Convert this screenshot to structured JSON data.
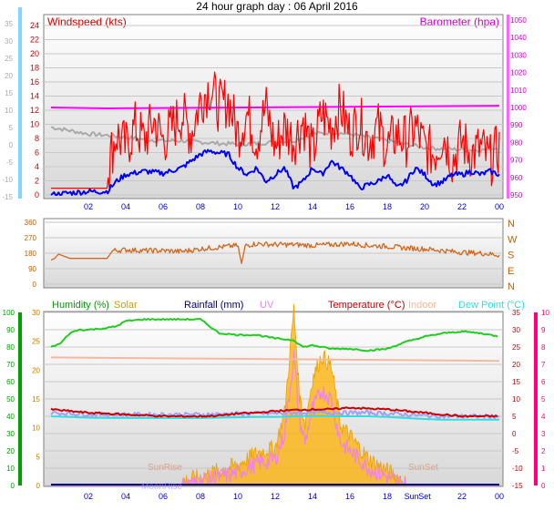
{
  "title": "24 hour graph day : 06 April 2016",
  "colors": {
    "wind_speed": "#ff0000",
    "wind_gust": "#ff0000",
    "wind_avg": "#0000ff",
    "barometer": "#ff00ff",
    "temp_gray": "#a9a9a9",
    "direction": "#d2691e",
    "humidity": "#22cc22",
    "solar": "#ffb000",
    "rainfall": "#000080",
    "uv": "#ee82ee",
    "temperature": "#c80000",
    "indoor": "#f4b8a0",
    "dew_point": "#33dddd",
    "apparent": "#a0a0ff",
    "left_axis_cyan": "#00b0ff",
    "left_axis_green": "#00a000",
    "left_axis_orange": "#c08000",
    "right_axis_pink": "#ff0080",
    "tick_blue": "#0000cc"
  },
  "chart_data": [
    {
      "type": "line",
      "panel": "wind",
      "title": "24 hour graph day : 06 April 2016",
      "left_label": "Windspeed (kts)",
      "right_label": "Barometer (hpa)",
      "left_ticks": [
        "24",
        "22",
        "20",
        "18",
        "16",
        "14",
        "12",
        "10",
        "8",
        "6",
        "4",
        "2",
        "0"
      ],
      "left_ticks_outer": [
        "35",
        "30",
        "25",
        "20",
        "15",
        "10",
        "5",
        "0",
        "-5",
        "-10",
        "-15"
      ],
      "right_ticks": [
        "1050",
        "1040",
        "1030",
        "1020",
        "1010",
        "1000",
        "990",
        "980",
        "970",
        "960",
        "950"
      ],
      "x_ticks": [
        "02",
        "04",
        "06",
        "08",
        "10",
        "12",
        "14",
        "16",
        "18",
        "20",
        "22",
        "00"
      ],
      "ylim": [
        0,
        25
      ],
      "series": [
        {
          "x": [
            0,
            1,
            2,
            3,
            3.2,
            3.5,
            4,
            4.5,
            5,
            5.5,
            6,
            6.5,
            7,
            7.5,
            8,
            8.5,
            9,
            9.5,
            10,
            10.5,
            11,
            11.5,
            12,
            12.5,
            13,
            13.5,
            14,
            14.5,
            15,
            15.5,
            16,
            16.5,
            17,
            17.5,
            18,
            18.5,
            19,
            19.5,
            20,
            20.5,
            21,
            21.5,
            22,
            22.5,
            23,
            23.5,
            24
          ],
          "values": [
            1,
            1,
            1,
            1,
            6,
            9,
            7,
            10,
            8,
            11,
            8,
            10,
            12,
            9,
            14,
            16,
            13,
            14,
            9,
            12,
            8,
            13,
            7,
            10,
            8,
            11,
            6,
            12,
            10,
            13,
            9,
            11,
            8,
            10,
            7,
            9,
            8,
            10,
            7,
            6,
            9,
            5,
            8,
            6,
            7,
            5,
            7
          ]
        },
        {
          "x": [
            0,
            1,
            2,
            3,
            3.5,
            4,
            5,
            6,
            7,
            8,
            8.5,
            9,
            9.5,
            10,
            10.5,
            11,
            11.5,
            12,
            12.5,
            13,
            13.5,
            14,
            14.5,
            15,
            15.5,
            16,
            16.5,
            17,
            17.5,
            18,
            18.5,
            19,
            19.5,
            20,
            20.5,
            21,
            21.5,
            22,
            22.5,
            23,
            23.5,
            24
          ],
          "values": [
            0,
            0.3,
            0.5,
            0.5,
            2,
            3,
            3.5,
            3.2,
            4,
            6,
            6.5,
            6.2,
            6,
            4,
            3,
            4,
            2,
            3,
            4,
            1,
            2,
            4,
            3,
            5,
            4,
            3,
            1,
            1.5,
            2,
            3,
            1,
            2,
            4,
            3,
            1.5,
            2,
            3,
            3,
            3.5,
            3,
            3.5,
            3
          ]
        },
        {
          "x": [
            0,
            24
          ],
          "values": [
            1000,
            1001
          ]
        },
        {
          "x": [
            0,
            1,
            2,
            3,
            4,
            5,
            6,
            7,
            8,
            9,
            10,
            11,
            12,
            13,
            14,
            15,
            16,
            17,
            18,
            19,
            20,
            21,
            22,
            23,
            24
          ],
          "values": [
            10,
            9.5,
            9,
            8.8,
            8.5,
            8.2,
            8,
            8,
            7.8,
            7.6,
            7.5,
            7.6,
            7.8,
            8,
            9,
            9.2,
            9,
            8.5,
            8,
            7.5,
            7,
            6.8,
            6.7,
            6.6,
            7
          ]
        }
      ]
    },
    {
      "type": "line",
      "panel": "direction",
      "left_ticks": [
        "360",
        "270",
        "180",
        "90",
        "0"
      ],
      "right_ticks": [
        "N",
        "W",
        "S",
        "E",
        "N"
      ],
      "ylim": [
        0,
        360
      ],
      "series": [
        {
          "x": [
            0,
            0.2,
            0.4,
            1,
            2,
            3,
            3.3,
            4,
            5,
            6,
            7,
            8,
            9,
            10,
            10.2,
            10.4,
            11,
            12,
            13,
            14,
            15,
            16,
            17,
            18,
            19,
            20,
            21,
            22,
            23,
            24
          ],
          "values": [
            140,
            150,
            175,
            150,
            150,
            150,
            195,
            200,
            195,
            195,
            190,
            205,
            215,
            225,
            120,
            225,
            235,
            230,
            230,
            225,
            230,
            235,
            225,
            220,
            210,
            205,
            195,
            185,
            180,
            170
          ]
        }
      ]
    },
    {
      "type": "line",
      "panel": "lower",
      "labels": [
        "Humidity (%)",
        "Solar",
        "Rainfall (mm)",
        "UV",
        "Temperature (°C)",
        "Indoor",
        "Dew Point (°C)"
      ],
      "annotations": [
        "SunRise",
        "MoonRise",
        "SunSet",
        "SunSet"
      ],
      "left_ticks_inner": [
        "30",
        "25",
        "20",
        "15",
        "10",
        "5",
        "0"
      ],
      "left_ticks_outer": [
        "100",
        "90",
        "80",
        "70",
        "60",
        "50",
        "40",
        "30",
        "20",
        "10",
        "0"
      ],
      "right_ticks_inner": [
        "35",
        "30",
        "25",
        "20",
        "15",
        "10",
        "5",
        "0",
        "-5",
        "-10",
        "-15"
      ],
      "right_ticks_outer": [
        "10",
        "9",
        "8",
        "7",
        "6",
        "5",
        "4",
        "3",
        "2",
        "1",
        "0"
      ],
      "x_ticks": [
        "02",
        "04",
        "06",
        "08",
        "10",
        "12",
        "14",
        "16",
        "18",
        "Sun",
        "Set",
        "22",
        "00"
      ],
      "series": [
        {
          "name": "Humidity (%)",
          "x": [
            0,
            0.5,
            1,
            1.5,
            2,
            3,
            3.5,
            4,
            5,
            6,
            7,
            8,
            9,
            10,
            11,
            12,
            13,
            13.5,
            14,
            15,
            16,
            17,
            18,
            19,
            20,
            21,
            22,
            23,
            24
          ],
          "values": [
            80,
            82,
            88,
            90,
            90,
            91,
            92,
            95,
            96,
            96,
            96,
            96,
            88,
            87,
            87,
            85,
            84,
            80,
            81,
            79,
            79,
            78,
            79,
            83,
            86,
            88,
            89,
            88,
            86
          ]
        },
        {
          "name": "Temperature (°C)",
          "x": [
            0,
            1,
            2,
            3,
            4,
            5,
            6,
            7,
            8,
            9,
            10,
            11,
            12,
            13,
            14,
            15,
            16,
            17,
            18,
            19,
            20,
            21,
            22,
            23,
            24
          ],
          "values": [
            7,
            6.5,
            6,
            5.8,
            5.5,
            5.3,
            5,
            5,
            5,
            5.2,
            5.8,
            6,
            6.5,
            6.8,
            7,
            7,
            7.5,
            7.2,
            7,
            6.5,
            6,
            5.5,
            5,
            5,
            5
          ]
        },
        {
          "name": "Indoor",
          "x": [
            0,
            24
          ],
          "values": [
            22,
            21
          ]
        },
        {
          "name": "Dew Point (°C)",
          "x": [
            0,
            1,
            2,
            3,
            4,
            5,
            6,
            7,
            8,
            9,
            10,
            11,
            12,
            13,
            14,
            15,
            16,
            17,
            18,
            19,
            20,
            21,
            22,
            23,
            24
          ],
          "values": [
            5,
            4.8,
            4.6,
            4.5,
            4.5,
            4.5,
            4.5,
            4.5,
            4.5,
            4.6,
            4.7,
            4.8,
            4.8,
            5,
            5.1,
            5,
            5,
            5,
            4.8,
            4.5,
            4.2,
            4,
            4,
            4,
            4
          ]
        },
        {
          "name": "Solar",
          "x": [
            0,
            7,
            8,
            9,
            10,
            11,
            12,
            12.5,
            13,
            13.3,
            13.6,
            14,
            14.5,
            15,
            15.5,
            16,
            17,
            18,
            19,
            24
          ],
          "values": [
            0,
            0,
            1,
            2,
            3,
            5,
            6,
            12,
            30,
            15,
            10,
            18,
            22,
            20,
            10,
            8,
            4,
            2,
            0,
            0
          ]
        }
      ]
    }
  ]
}
